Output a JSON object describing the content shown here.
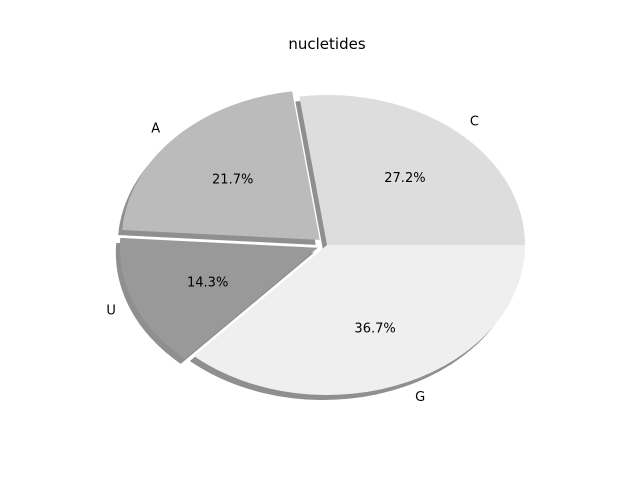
{
  "chart_data": {
    "type": "pie",
    "title": "nucletides",
    "labels": [
      "G",
      "U",
      "A",
      "C"
    ],
    "percentages": [
      36.7,
      14.3,
      21.7,
      27.2
    ],
    "percent_labels": [
      "36.7%",
      "14.3%",
      "21.7%",
      "27.2%"
    ],
    "colors": [
      "#efefef",
      "#999999",
      "#bbbbbb",
      "#dddddd"
    ],
    "explode": [
      0,
      0.05,
      0.05,
      0
    ],
    "shadow": true,
    "start_angle_deg": 0,
    "direction": "clockwise",
    "legend": "none"
  }
}
